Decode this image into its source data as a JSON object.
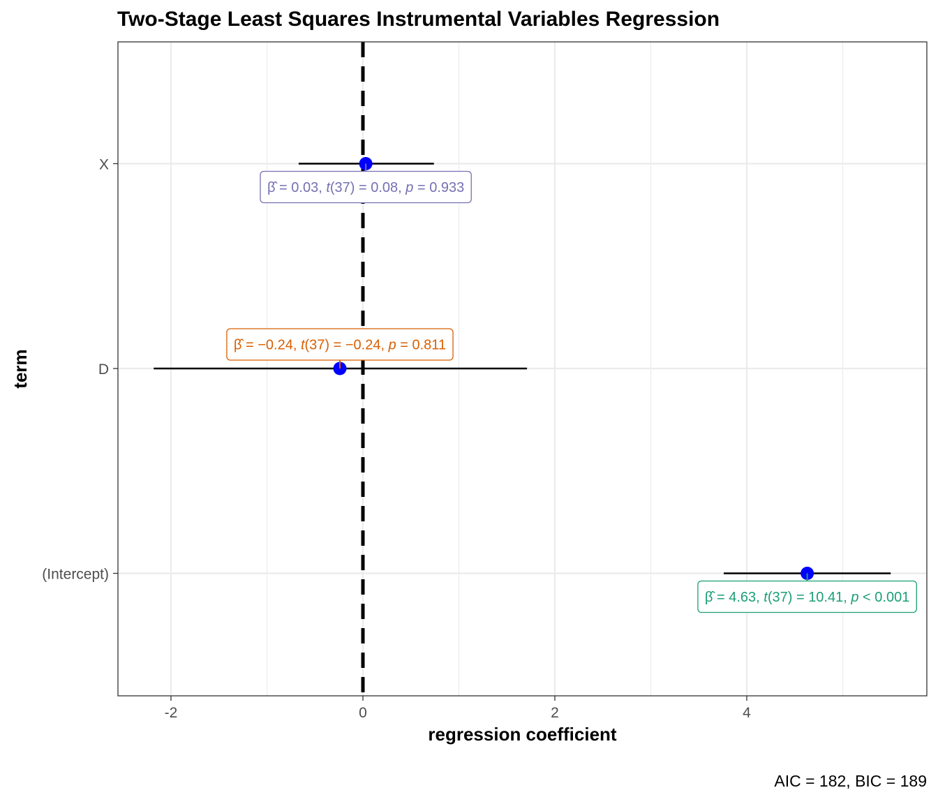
{
  "chart_data": {
    "type": "scatter",
    "title": "Two-Stage Least Squares Instrumental Variables Regression",
    "xlabel": "regression coefficient",
    "ylabel": "term",
    "xlim": [
      -2.6,
      5.85
    ],
    "x_ticks": [
      "-2",
      "0",
      "2",
      "4"
    ],
    "x_tick_values": [
      -2,
      0,
      2,
      4
    ],
    "categories": [
      "X",
      "D",
      "(Intercept)"
    ],
    "reference_line": 0,
    "grid": true,
    "series": [
      {
        "points": [
          {
            "term": "X",
            "estimate": 0.03,
            "conf_low": -0.67,
            "conf_high": 0.74
          },
          {
            "term": "D",
            "estimate": -0.24,
            "conf_low": -2.18,
            "conf_high": 1.71
          },
          {
            "term": "(Intercept)",
            "estimate": 4.63,
            "conf_low": 3.76,
            "conf_high": 5.5
          }
        ]
      }
    ],
    "annotations": [
      {
        "term": "X",
        "placement": "below",
        "color": "#7570b3",
        "parts": [
          "β̂ = 0.03, ",
          "t",
          "(37) = 0.08, ",
          "p",
          " = 0.933"
        ]
      },
      {
        "term": "D",
        "placement": "above",
        "color": "#d95f02",
        "parts": [
          "β̂ = −0.24, ",
          "t",
          "(37) = −0.24, ",
          "p",
          " = 0.811"
        ]
      },
      {
        "term": "(Intercept)",
        "placement": "below",
        "color": "#1b9e77",
        "parts": [
          "β̂ = 4.63, ",
          "t",
          "(37) = 10.41, ",
          "p",
          " < 0.001"
        ]
      }
    ],
    "caption": "AIC = 182, BIC = 189",
    "colors": {
      "point": "#0000ff",
      "errorbar": "#000000",
      "refline": "#000000",
      "grid": "#ebebeb",
      "panel_border": "#333333"
    }
  }
}
